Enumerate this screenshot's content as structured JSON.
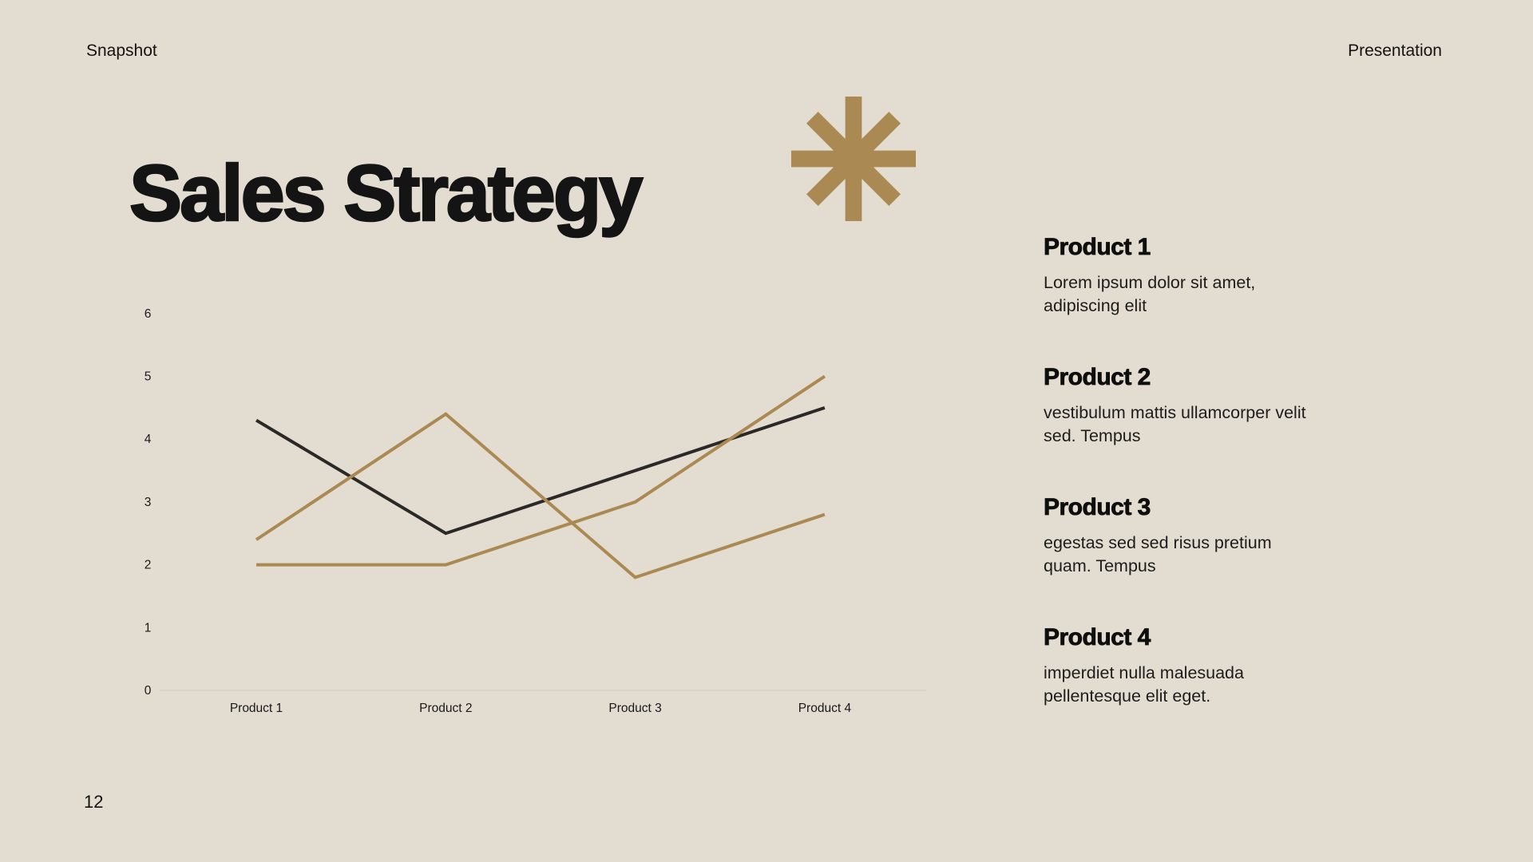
{
  "page": {
    "header_left": "Snapshot",
    "header_right": "Presentation",
    "title": "Sales Strategy",
    "page_number": "12",
    "colors": {
      "background": "#e3dcd0",
      "accent_gold": "#ab8952",
      "ink": "#141414",
      "axis_line": "#d7d0c4"
    }
  },
  "chart_data": {
    "type": "line",
    "categories": [
      "Product 1",
      "Product 2",
      "Product 3",
      "Product 4"
    ],
    "series": [
      {
        "name": "dark-series",
        "color": "#2a2927",
        "values": [
          4.3,
          2.5,
          3.5,
          4.5
        ]
      },
      {
        "name": "gold-series-1",
        "color": "#ab8952",
        "values": [
          2.4,
          4.4,
          1.8,
          2.8
        ]
      },
      {
        "name": "gold-series-2",
        "color": "#ab8952",
        "values": [
          2.0,
          2.0,
          3.0,
          5.0
        ]
      }
    ],
    "ylim": [
      0,
      6
    ],
    "yticks": [
      0,
      1,
      2,
      3,
      4,
      5,
      6
    ],
    "grid": false,
    "legend": "none",
    "title": ""
  },
  "products": [
    {
      "heading": "Product 1",
      "body": [
        "Lorem ipsum dolor sit amet,",
        "adipiscing elit"
      ]
    },
    {
      "heading": "Product 2",
      "body": [
        "vestibulum mattis ullamcorper velit",
        "sed. Tempus"
      ]
    },
    {
      "heading": "Product 3",
      "body": [
        "egestas sed sed risus pretium",
        "quam. Tempus"
      ]
    },
    {
      "heading": "Product 4",
      "body": [
        "imperdiet nulla malesuada",
        "pellentesque elit eget."
      ]
    }
  ]
}
